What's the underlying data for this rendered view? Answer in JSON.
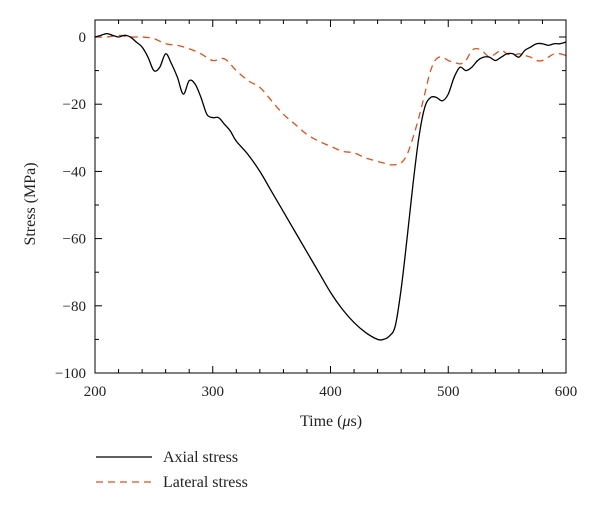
{
  "chart_data": {
    "type": "line",
    "xlabel_prefix": "Time (",
    "xlabel_symbol": "μ",
    "xlabel_suffix": "s)",
    "ylabel": "Stress (MPa)",
    "xlim": [
      200,
      600
    ],
    "ylim": [
      -100,
      5
    ],
    "xticks": [
      200,
      300,
      400,
      500,
      600
    ],
    "yticks": [
      0,
      -20,
      -40,
      -60,
      -80,
      -100
    ],
    "yticklabels": [
      "0",
      "−20",
      "−40",
      "−60",
      "−80",
      "−100"
    ],
    "grid": false,
    "legend_position": "bottom-left, below plot",
    "series": [
      {
        "name": "Axial stress",
        "color": "#000000",
        "dash": "solid",
        "x": [
          200,
          205,
          210,
          215,
          220,
          225,
          230,
          235,
          240,
          245,
          250,
          255,
          260,
          265,
          270,
          275,
          280,
          285,
          290,
          295,
          300,
          305,
          310,
          315,
          320,
          330,
          340,
          350,
          360,
          370,
          380,
          390,
          400,
          410,
          420,
          430,
          440,
          445,
          450,
          455,
          460,
          465,
          470,
          475,
          480,
          485,
          490,
          495,
          500,
          505,
          510,
          515,
          520,
          525,
          530,
          535,
          540,
          545,
          550,
          555,
          560,
          565,
          570,
          575,
          580,
          585,
          590,
          595,
          600
        ],
        "y": [
          0,
          0.5,
          1,
          0.5,
          0,
          0.5,
          0,
          -1.5,
          -3,
          -6,
          -10,
          -9,
          -5,
          -8,
          -12,
          -17,
          -13,
          -14,
          -18,
          -23,
          -24,
          -24,
          -26,
          -28,
          -31,
          -35,
          -40,
          -46,
          -52,
          -58,
          -64,
          -70,
          -76,
          -81,
          -85,
          -88,
          -90,
          -90,
          -89,
          -86,
          -75,
          -60,
          -44,
          -30,
          -21,
          -18,
          -18,
          -19,
          -17,
          -12,
          -9,
          -10,
          -9,
          -7,
          -6,
          -6,
          -7,
          -6,
          -5,
          -5,
          -6,
          -4,
          -3,
          -2,
          -2,
          -2.5,
          -2,
          -2,
          -1.5
        ]
      },
      {
        "name": "Lateral stress",
        "color": "#e0501c",
        "dash": "dashed",
        "x": [
          200,
          210,
          220,
          230,
          240,
          250,
          260,
          270,
          280,
          290,
          300,
          310,
          320,
          330,
          340,
          350,
          360,
          370,
          380,
          390,
          400,
          410,
          420,
          430,
          440,
          450,
          455,
          460,
          465,
          470,
          475,
          480,
          485,
          490,
          495,
          500,
          505,
          510,
          515,
          520,
          525,
          530,
          535,
          540,
          545,
          550,
          555,
          560,
          565,
          570,
          575,
          580,
          585,
          590,
          595,
          600
        ],
        "y": [
          0,
          0,
          0.5,
          0,
          0,
          -0.5,
          -2,
          -2.5,
          -3.5,
          -5,
          -7,
          -6.5,
          -10,
          -13,
          -15,
          -19,
          -23,
          -26,
          -29,
          -31,
          -32.5,
          -34,
          -34.5,
          -36,
          -37,
          -38,
          -38,
          -37.5,
          -35,
          -30,
          -24,
          -17,
          -10,
          -6.5,
          -6,
          -7,
          -7.5,
          -8,
          -7,
          -4,
          -3.5,
          -4.5,
          -6,
          -5,
          -4,
          -5,
          -5.5,
          -5,
          -5.5,
          -6,
          -7,
          -7,
          -6,
          -5,
          -5,
          -5.5
        ]
      }
    ]
  }
}
